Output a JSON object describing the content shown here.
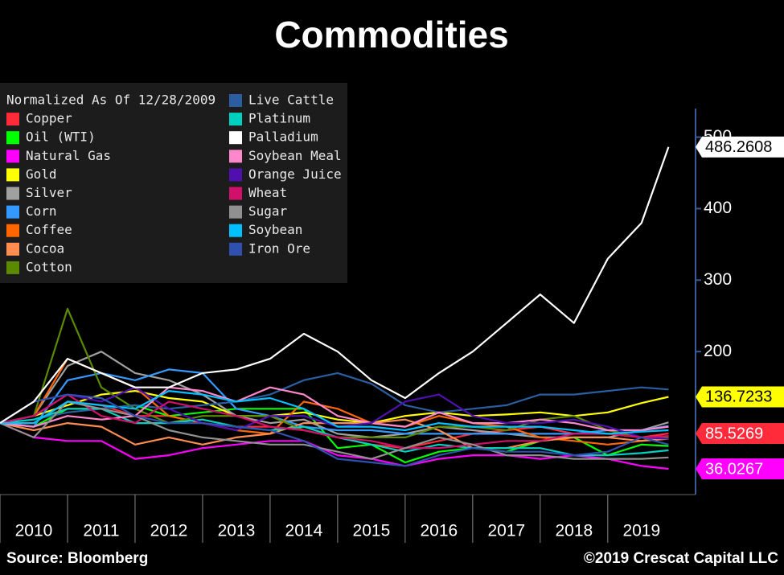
{
  "chart_data": {
    "type": "line",
    "title": "Commodities",
    "legend_title": "Normalized As Of 12/28/2009",
    "source": "Source: Bloomberg",
    "copyright": "©2019 Crescat Capital LLC",
    "x": [
      2010,
      2010.5,
      2011,
      2011.5,
      2012,
      2012.5,
      2013,
      2013.5,
      2014,
      2014.5,
      2015,
      2015.5,
      2016,
      2016.5,
      2017,
      2017.5,
      2018,
      2018.5,
      2019,
      2019.5,
      2019.9
    ],
    "xlim": [
      2010,
      2020.3
    ],
    "xticks": [
      2010,
      2011,
      2012,
      2013,
      2014,
      2015,
      2016,
      2017,
      2018,
      2019
    ],
    "ylim": [
      0,
      540
    ],
    "yticks": [
      200,
      300,
      400,
      500
    ],
    "legend": "upper left",
    "series": [
      {
        "name": "Copper",
        "color": "#ff2a3a",
        "end_label": true,
        "values": [
          100,
          100,
          130,
          125,
          110,
          110,
          100,
          95,
          95,
          90,
          80,
          70,
          65,
          75,
          85,
          90,
          95,
          85,
          85,
          80,
          85.5269
        ]
      },
      {
        "name": "Oil (WTI)",
        "color": "#00ff00",
        "values": [
          100,
          95,
          120,
          120,
          125,
          110,
          115,
          120,
          120,
          120,
          65,
          70,
          45,
          60,
          65,
          60,
          75,
          80,
          55,
          70,
          68
        ]
      },
      {
        "name": "Natural Gas",
        "color": "#ff00ff",
        "end_label": true,
        "values": [
          100,
          80,
          75,
          75,
          50,
          55,
          65,
          70,
          75,
          75,
          55,
          50,
          40,
          50,
          55,
          55,
          50,
          55,
          50,
          40,
          36.0267
        ]
      },
      {
        "name": "Gold",
        "color": "#ffff00",
        "end_label": true,
        "values": [
          100,
          110,
          125,
          140,
          145,
          135,
          130,
          110,
          110,
          115,
          105,
          100,
          110,
          115,
          110,
          112,
          115,
          110,
          115,
          128,
          136.7233
        ]
      },
      {
        "name": "Silver",
        "color": "#a0a0a0",
        "values": [
          100,
          110,
          180,
          200,
          170,
          160,
          140,
          110,
          100,
          105,
          85,
          80,
          85,
          95,
          90,
          85,
          80,
          80,
          80,
          90,
          101
        ]
      },
      {
        "name": "Corn",
        "color": "#3399ff",
        "values": [
          100,
          95,
          160,
          170,
          160,
          175,
          170,
          120,
          110,
          95,
          90,
          90,
          85,
          85,
          85,
          85,
          85,
          85,
          90,
          90,
          96
        ]
      },
      {
        "name": "Coffee",
        "color": "#ff6600",
        "values": [
          100,
          110,
          190,
          170,
          150,
          110,
          100,
          90,
          85,
          130,
          120,
          100,
          95,
          110,
          100,
          95,
          80,
          75,
          70,
          75,
          82
        ]
      },
      {
        "name": "Cocoa",
        "color": "#ff8c50",
        "values": [
          100,
          90,
          100,
          95,
          70,
          80,
          70,
          80,
          85,
          100,
          100,
          100,
          105,
          90,
          65,
          65,
          75,
          80,
          80,
          75,
          78
        ]
      },
      {
        "name": "Cotton",
        "color": "#5a8a00",
        "values": [
          100,
          110,
          260,
          150,
          120,
          100,
          110,
          110,
          110,
          90,
          80,
          80,
          80,
          95,
          95,
          90,
          105,
          110,
          90,
          80,
          80
        ]
      },
      {
        "name": "Live Cattle",
        "color": "#2a5ea0",
        "values": [
          100,
          105,
          115,
          120,
          125,
          120,
          125,
          130,
          140,
          160,
          170,
          155,
          125,
          115,
          120,
          125,
          140,
          140,
          145,
          150,
          147
        ]
      },
      {
        "name": "Platinum",
        "color": "#00d0c0",
        "values": [
          100,
          105,
          120,
          120,
          100,
          100,
          105,
          95,
          90,
          95,
          80,
          70,
          60,
          70,
          65,
          65,
          65,
          55,
          55,
          58,
          62
        ]
      },
      {
        "name": "Soybean Meal",
        "color": "#ff88cc",
        "values": [
          100,
          95,
          110,
          105,
          110,
          150,
          145,
          130,
          150,
          140,
          110,
          100,
          95,
          115,
          100,
          100,
          105,
          100,
          90,
          90,
          95
        ]
      },
      {
        "name": "Orange Juice",
        "color": "#5010b0",
        "values": [
          100,
          110,
          140,
          130,
          150,
          120,
          100,
          90,
          110,
          110,
          95,
          100,
          130,
          140,
          110,
          100,
          100,
          105,
          95,
          80,
          78
        ]
      },
      {
        "name": "Wheat",
        "color": "#d0106a",
        "values": [
          100,
          110,
          140,
          110,
          100,
          130,
          120,
          110,
          95,
          90,
          80,
          75,
          65,
          65,
          70,
          75,
          75,
          85,
          85,
          80,
          82
        ]
      },
      {
        "name": "Sugar",
        "color": "#909090",
        "values": [
          100,
          80,
          130,
          120,
          110,
          90,
          80,
          75,
          70,
          70,
          60,
          50,
          65,
          80,
          70,
          55,
          55,
          50,
          50,
          50,
          52
        ]
      },
      {
        "name": "Soybean",
        "color": "#00c0ff",
        "values": [
          100,
          100,
          130,
          125,
          120,
          145,
          140,
          130,
          135,
          120,
          95,
          95,
          90,
          100,
          95,
          95,
          95,
          90,
          85,
          88,
          90
        ]
      },
      {
        "name": "Iron  Ore",
        "color": "#3050b0",
        "values": [
          100,
          130,
          140,
          135,
          110,
          100,
          100,
          95,
          90,
          75,
          50,
          45,
          40,
          55,
          65,
          60,
          60,
          55,
          60,
          80,
          70
        ]
      },
      {
        "name": "Palladium",
        "color": "#ffffff",
        "end_label": true,
        "values": [
          100,
          130,
          190,
          170,
          150,
          150,
          170,
          175,
          190,
          225,
          200,
          160,
          135,
          170,
          200,
          240,
          280,
          240,
          330,
          380,
          486.2608
        ]
      }
    ]
  }
}
